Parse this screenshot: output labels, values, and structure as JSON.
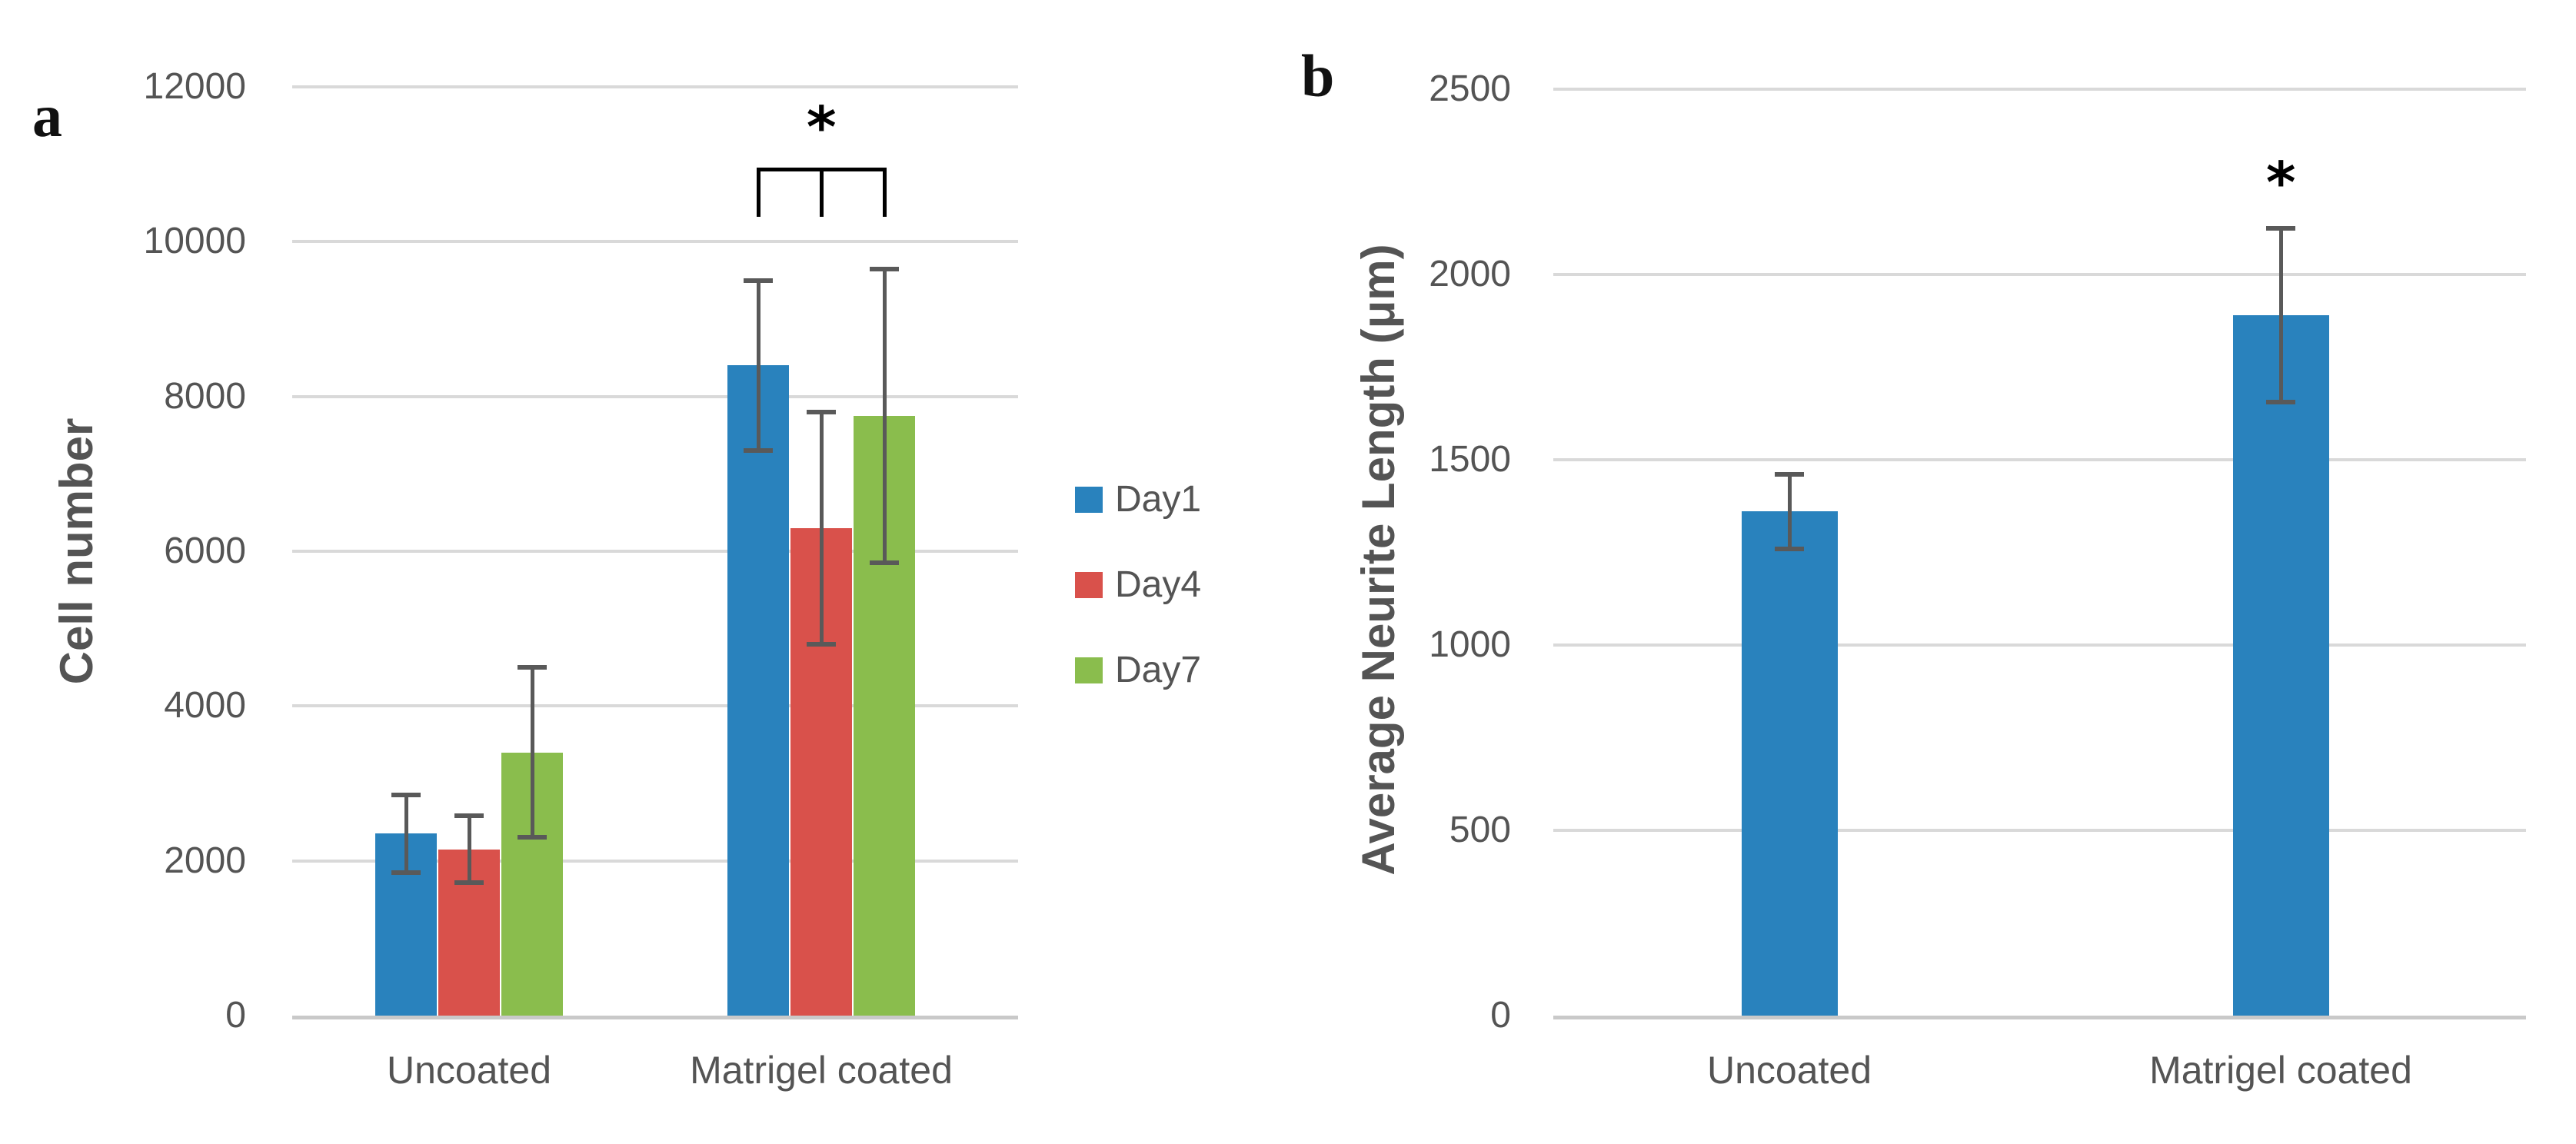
{
  "figure": {
    "panel_a_letter": "a",
    "panel_b_letter": "b"
  },
  "colors": {
    "day1_blue": "#2982BD",
    "day4_red": "#D9514B",
    "day7_green": "#8ABD4D",
    "error_bar_gray": "#595959",
    "gridline_gray": "#D9D9D9",
    "axis_line_gray": "#C9C9C9",
    "text_gray": "#545454",
    "annotation_black": "#000000"
  },
  "chart_data": [
    {
      "type": "bar",
      "panel": "a",
      "title": "",
      "xlabel": "",
      "ylabel": "Cell number",
      "ylim": [
        0,
        12000
      ],
      "yticks": [
        0,
        2000,
        4000,
        6000,
        8000,
        10000,
        12000
      ],
      "grid": true,
      "categories": [
        "Uncoated",
        "Matrigel coated"
      ],
      "series": [
        {
          "name": "Day1",
          "color": "#2982BD",
          "values": [
            2350,
            8400
          ],
          "errors": [
            500,
            1100
          ]
        },
        {
          "name": "Day4",
          "color": "#D9514B",
          "values": [
            2150,
            6300
          ],
          "errors": [
            430,
            1500
          ]
        },
        {
          "name": "Day7",
          "color": "#8ABD4D",
          "values": [
            3400,
            7750
          ],
          "errors": [
            1100,
            1900
          ]
        }
      ],
      "legend": {
        "position": "right-of-plot",
        "entries": [
          "Day1",
          "Day4",
          "Day7"
        ]
      },
      "annotations": [
        {
          "type": "significance-bracket",
          "label": "*",
          "category_index": 1,
          "connects": [
            "Day1",
            "Day4",
            "Day7"
          ]
        }
      ]
    },
    {
      "type": "bar",
      "panel": "b",
      "title": "",
      "xlabel": "",
      "ylabel": "Average Neurite Length (μm)",
      "ylim": [
        0,
        2500
      ],
      "yticks": [
        0,
        500,
        1000,
        1500,
        2000,
        2500
      ],
      "grid": true,
      "categories": [
        "Uncoated",
        "Matrigel coated"
      ],
      "series": [
        {
          "name": "",
          "color": "#2982BD",
          "values": [
            1360,
            1890
          ],
          "errors": [
            100,
            235
          ]
        }
      ],
      "legend": null,
      "annotations": [
        {
          "type": "significance-star",
          "label": "*",
          "category_index": 1
        }
      ]
    }
  ]
}
